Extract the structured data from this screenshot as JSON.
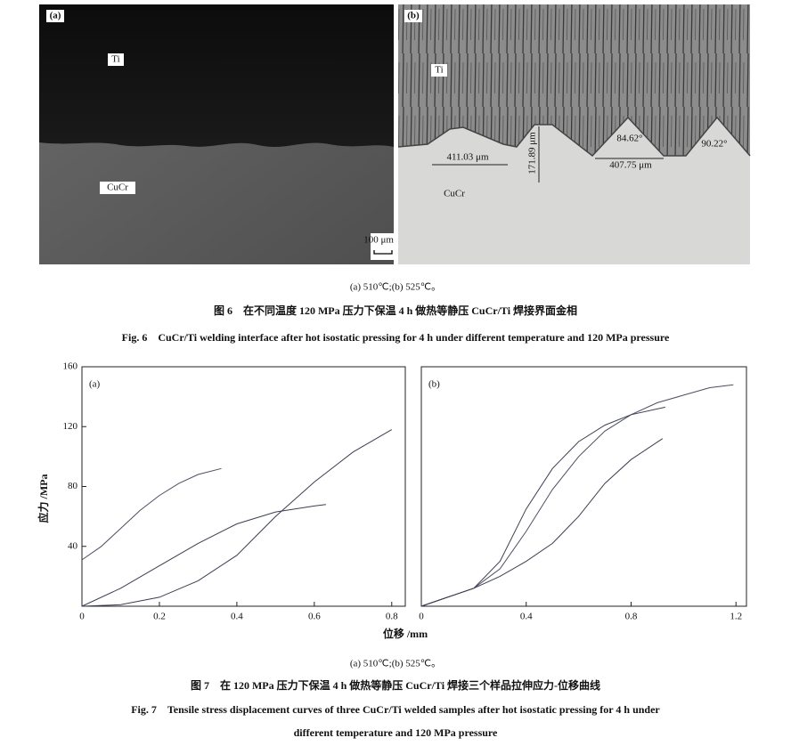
{
  "figure6": {
    "panel_a": {
      "label": "(a)",
      "top": "Ti",
      "bottom": "CuCr",
      "scale": "100 μm"
    },
    "panel_b": {
      "label": "(b)",
      "top": "Ti",
      "bottom": "CuCr",
      "width1": "411.03 μm",
      "depth": "171.89 μm",
      "angle1": "84.62°",
      "width2": "407.75 μm",
      "angle2": "90.22°"
    },
    "subcaption": "(a) 510℃;(b) 525℃。",
    "caption_cn": "图 6　在不同温度 120 MPa 压力下保温 4 h 做热等静压 CuCr/Ti 焊接界面金相",
    "caption_en": "Fig. 6　CuCr/Ti welding interface after hot isostatic pressing for 4 h under different temperature and 120 MPa pressure"
  },
  "chart_data": [
    {
      "type": "line",
      "panel_label": "(a)",
      "xlim": [
        0,
        0.835
      ],
      "ylim": [
        0,
        160
      ],
      "xticks": [
        0,
        0.2,
        0.4,
        0.6,
        0.8
      ],
      "yticks": [
        40,
        80,
        120,
        160
      ],
      "series": [
        {
          "color": "#4a4f66",
          "x": [
            0,
            0.05,
            0.1,
            0.15,
            0.2,
            0.25,
            0.3,
            0.36
          ],
          "values": [
            31,
            40,
            52,
            64,
            74,
            82,
            88,
            92
          ]
        },
        {
          "color": "#3a3f55",
          "x": [
            0,
            0.1,
            0.2,
            0.3,
            0.4,
            0.5,
            0.6,
            0.7,
            0.8
          ],
          "values": [
            0,
            1,
            6,
            17,
            34,
            60,
            83,
            103,
            118
          ]
        },
        {
          "color": "#3a3f55",
          "x": [
            0,
            0.1,
            0.2,
            0.3,
            0.4,
            0.5,
            0.6,
            0.63
          ],
          "values": [
            0,
            12,
            27,
            42,
            55,
            63,
            67,
            68
          ]
        }
      ]
    },
    {
      "type": "line",
      "panel_label": "(b)",
      "xlim": [
        0,
        1.24
      ],
      "ylim": [
        0,
        160
      ],
      "xticks": [
        0,
        0.4,
        0.8,
        1.2
      ],
      "series": [
        {
          "color": "#4a4f66",
          "x": [
            0,
            0.2,
            0.3,
            0.4,
            0.5,
            0.6,
            0.7,
            0.8,
            0.9,
            1.0,
            1.1,
            1.19
          ],
          "values": [
            0,
            12,
            25,
            50,
            78,
            100,
            117,
            128,
            136,
            141,
            146,
            148
          ]
        },
        {
          "color": "#3a3f55",
          "x": [
            0,
            0.2,
            0.3,
            0.4,
            0.5,
            0.6,
            0.7,
            0.8,
            0.93
          ],
          "values": [
            0,
            12,
            30,
            65,
            92,
            110,
            121,
            128,
            133
          ]
        },
        {
          "color": "#3a3f55",
          "x": [
            0,
            0.1,
            0.2,
            0.3,
            0.4,
            0.5,
            0.6,
            0.7,
            0.8,
            0.92
          ],
          "values": [
            0,
            6,
            12,
            20,
            30,
            42,
            60,
            82,
            98,
            112
          ]
        }
      ]
    }
  ],
  "figure7": {
    "ylabel": "应力 /MPa",
    "xlabel": "位移 /mm",
    "subcaption": "(a) 510℃;(b) 525℃。",
    "caption_cn": "图 7　在 120 MPa 压力下保温 4 h 做热等静压 CuCr/Ti 焊接三个样品拉伸应力-位移曲线",
    "caption_en": [
      "Fig. 7　Tensile stress displacement curves of three CuCr/Ti welded samples after hot isostatic pressing for 4 h under",
      "different temperature and 120 MPa pressure"
    ]
  }
}
